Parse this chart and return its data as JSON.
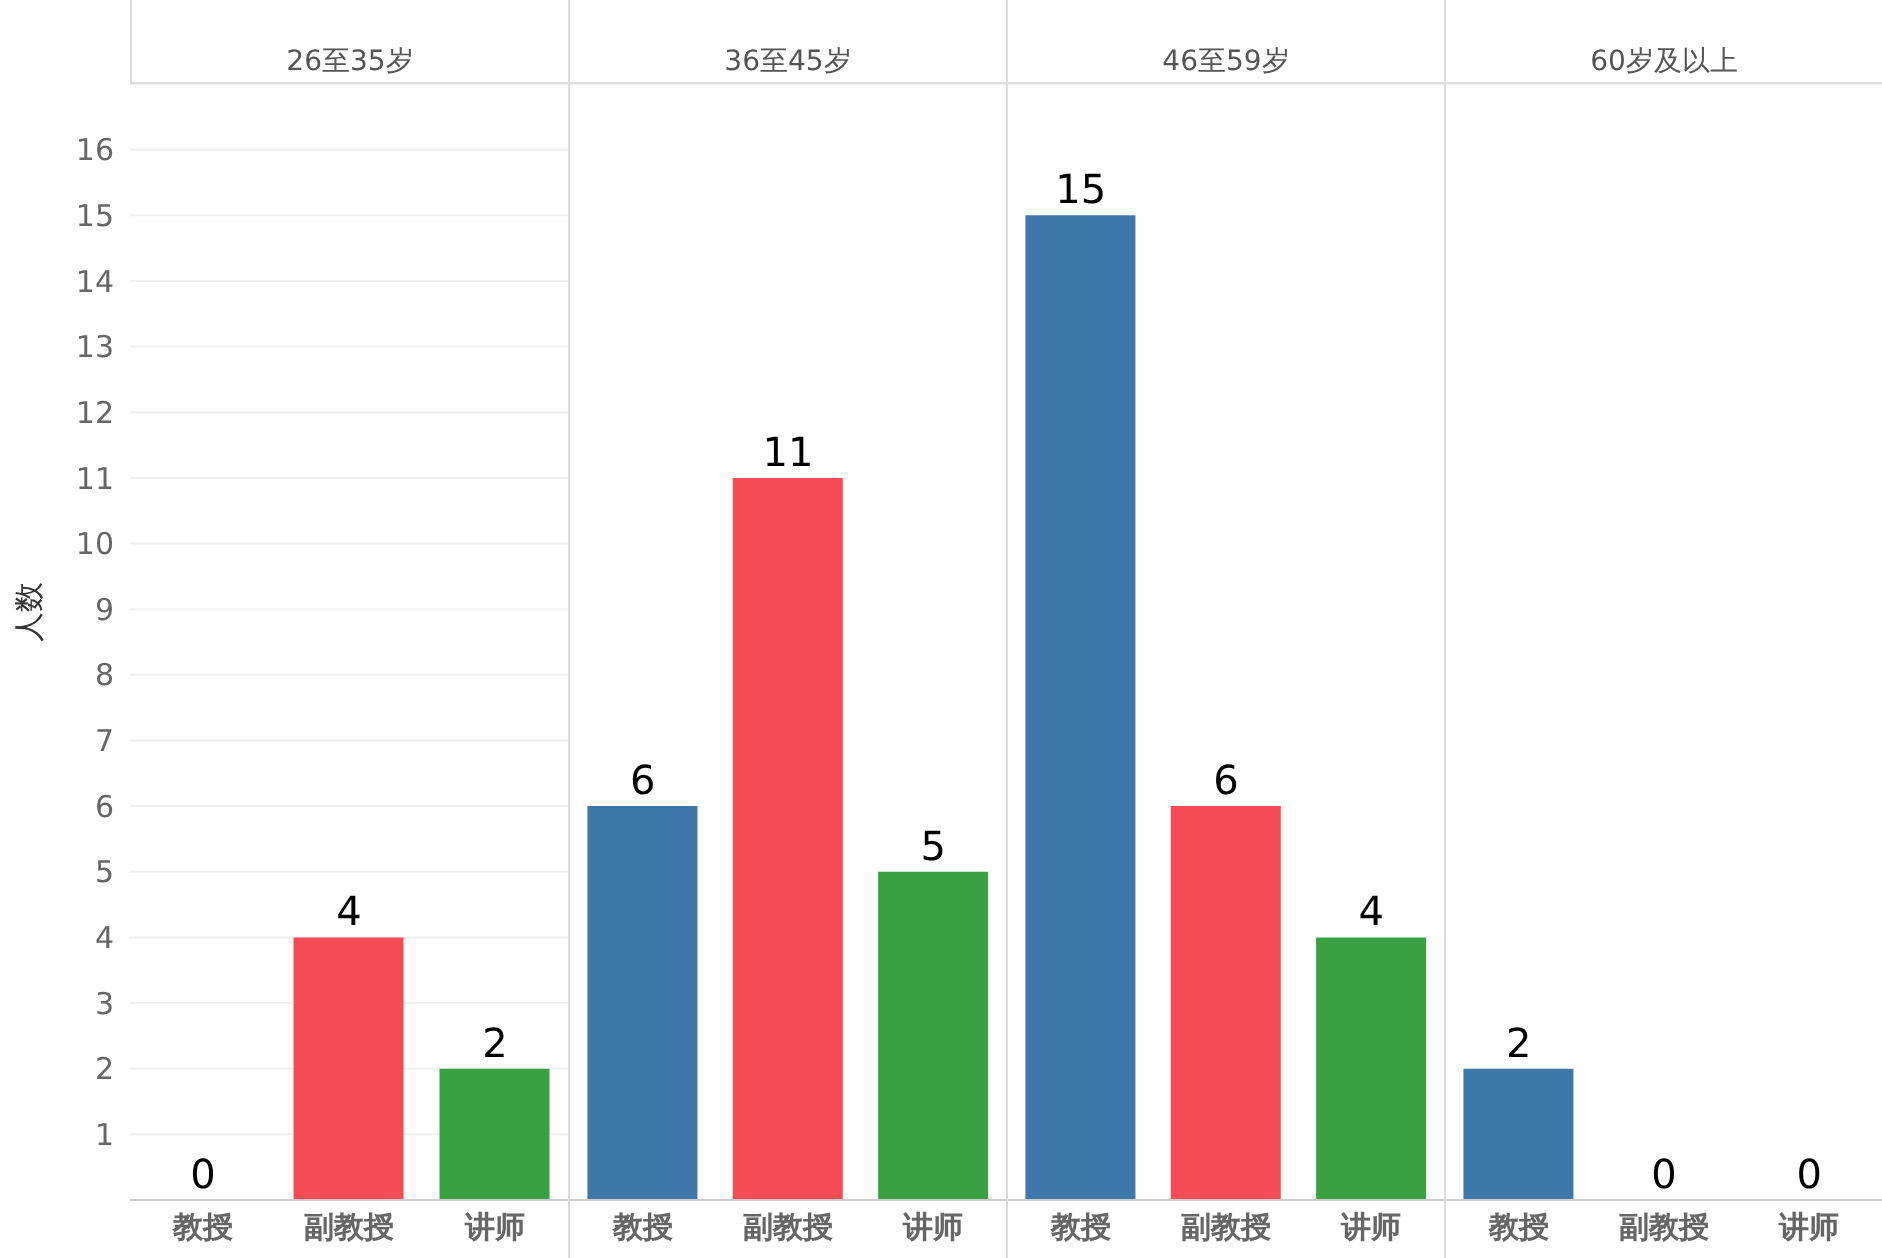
{
  "chart_data": [
    {
      "type": "bar",
      "title": "26至35岁",
      "ylabel": "人数",
      "categories": [
        "教授",
        "副教授",
        "讲师"
      ],
      "values": [
        0,
        4,
        2
      ],
      "colors": [
        "#3e78aa",
        "#f54b55",
        "#3aa142"
      ],
      "ylim": [
        0,
        17
      ],
      "yticks": [
        1,
        2,
        3,
        4,
        5,
        6,
        7,
        8,
        9,
        10,
        11,
        12,
        13,
        14,
        15,
        16
      ],
      "grid": "y",
      "data_labels": true
    },
    {
      "type": "bar",
      "title": "36至45岁",
      "categories": [
        "教授",
        "副教授",
        "讲师"
      ],
      "values": [
        6,
        11,
        5
      ],
      "colors": [
        "#3e78aa",
        "#f54b55",
        "#3aa142"
      ],
      "ylim": [
        0,
        17
      ],
      "yticks": [
        1,
        2,
        3,
        4,
        5,
        6,
        7,
        8,
        9,
        10,
        11,
        12,
        13,
        14,
        15,
        16
      ],
      "grid": "y",
      "data_labels": true,
      "tick_labels": "x"
    },
    {
      "type": "bar",
      "title": "46至59岁",
      "categories": [
        "教授",
        "副教授",
        "讲师"
      ],
      "values": [
        15,
        6,
        4
      ],
      "colors": [
        "#3e78aa",
        "#f54b55",
        "#3aa142"
      ],
      "ylim": [
        0,
        17
      ],
      "yticks": [
        1,
        2,
        3,
        4,
        5,
        6,
        7,
        8,
        9,
        10,
        11,
        12,
        13,
        14,
        15,
        16
      ],
      "grid": "y",
      "data_labels": true,
      "tick_labels": "x"
    },
    {
      "type": "bar",
      "title": "60岁及以上",
      "categories": [
        "教授",
        "副教授",
        "讲师"
      ],
      "values": [
        2,
        0,
        0
      ],
      "colors": [
        "#3e78aa",
        "#f54b55",
        "#3aa142"
      ],
      "ylim": [
        0,
        17
      ],
      "yticks": [
        1,
        2,
        3,
        4,
        5,
        6,
        7,
        8,
        9,
        10,
        11,
        12,
        13,
        14,
        15,
        16
      ],
      "grid": "y",
      "data_labels": true,
      "tick_labels": "x"
    }
  ]
}
